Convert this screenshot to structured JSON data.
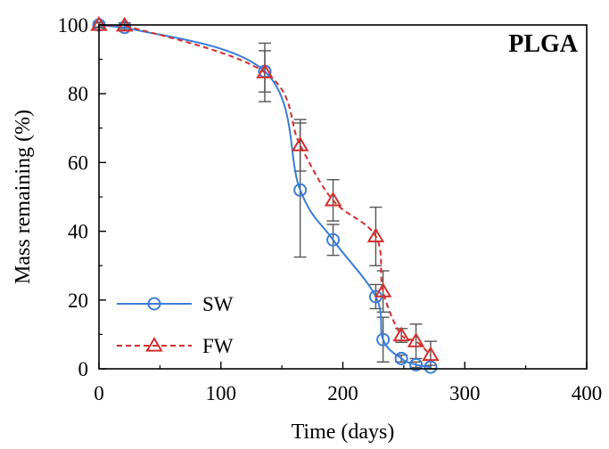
{
  "chart_data": {
    "type": "line",
    "title": "PLGA",
    "xlabel": "Time (days)",
    "ylabel": "Mass remaining (%)",
    "xlim": [
      0,
      400
    ],
    "ylim": [
      0,
      100
    ],
    "xticks": [
      "0",
      "100",
      "200",
      "300",
      "400"
    ],
    "yticks": [
      "0",
      "20",
      "40",
      "60",
      "80",
      "100"
    ],
    "grid": false,
    "legend_position": "bottom-left",
    "series": [
      {
        "name": "SW",
        "color": "#3B7DD8",
        "marker": "circle",
        "line_style": "solid",
        "x": [
          0,
          21,
          136,
          165,
          192,
          227,
          233,
          248,
          260,
          272
        ],
        "y": [
          100,
          99.3,
          86.5,
          52,
          37.5,
          21,
          8.5,
          3,
          1.2,
          0.5
        ],
        "error": [
          0.6,
          0.8,
          6,
          19.5,
          4.5,
          3.5,
          6.5,
          1,
          0.8,
          0.5
        ]
      },
      {
        "name": "FW",
        "color": "#D32F2F",
        "marker": "triangle",
        "line_style": "dashed",
        "x": [
          0,
          21,
          136,
          165,
          192,
          227,
          233,
          248,
          260,
          272
        ],
        "y": [
          100,
          99.8,
          86.2,
          65,
          49,
          38.5,
          22.5,
          9.7,
          8,
          4
        ],
        "error": [
          0.8,
          0.8,
          8.5,
          7.5,
          6,
          8.5,
          6,
          2,
          5,
          4
        ]
      }
    ]
  }
}
